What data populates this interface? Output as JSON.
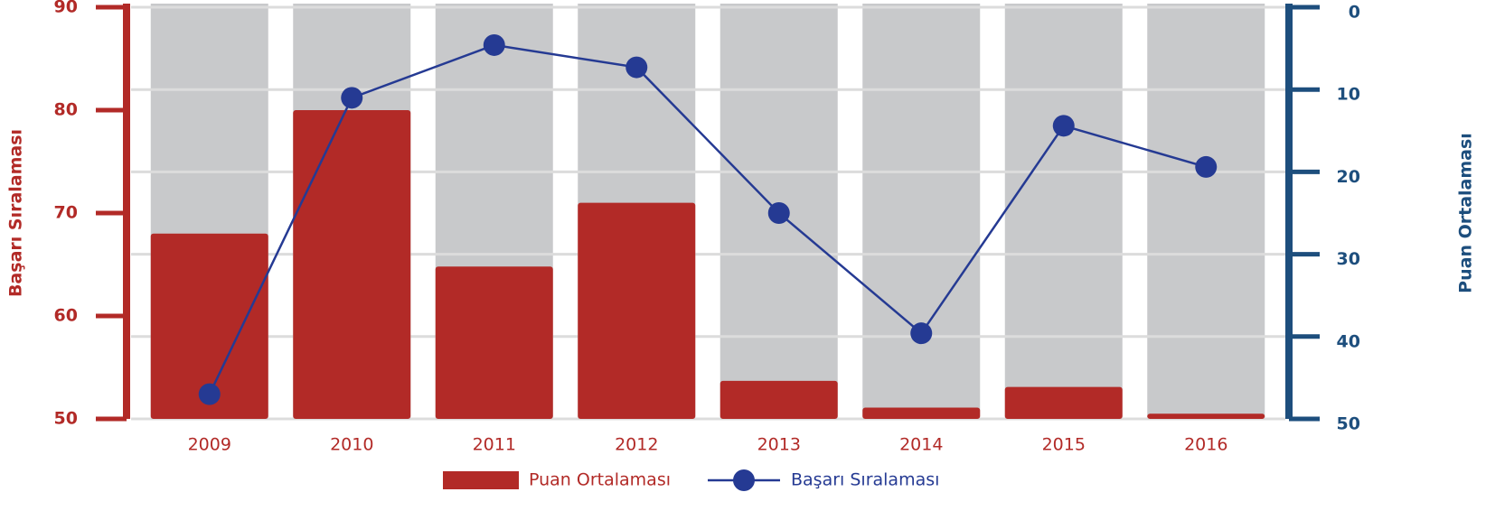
{
  "chart_data": {
    "type": "bar_line",
    "categories": [
      "2009",
      "2010",
      "2011",
      "2012",
      "2013",
      "2014",
      "2015",
      "2016"
    ],
    "series": [
      {
        "name": "Puan Ortalaması",
        "type": "bar",
        "color": "#b22a27",
        "values": [
          68,
          80,
          64.8,
          71,
          53.7,
          51.1,
          53.1,
          50.5
        ]
      },
      {
        "name": "Başarı Sıralaması",
        "type": "line",
        "axis": "y2",
        "color": "#253a93",
        "values": [
          47,
          11,
          4.6,
          7.3,
          25,
          39.6,
          14.4,
          19.4
        ]
      }
    ],
    "ylabel": "Başarı Sıralaması",
    "y2label": "Puan Ortalaması",
    "ylim": [
      50,
      90
    ],
    "yticks": [
      50,
      60,
      70,
      80,
      90
    ],
    "y2lim": [
      50,
      0
    ],
    "y2ticks": [
      0,
      10,
      20,
      30,
      40,
      50
    ],
    "y_color": "#b22a27",
    "y2_color": "#1d4e7d",
    "grid": true,
    "legend": "bottom"
  }
}
